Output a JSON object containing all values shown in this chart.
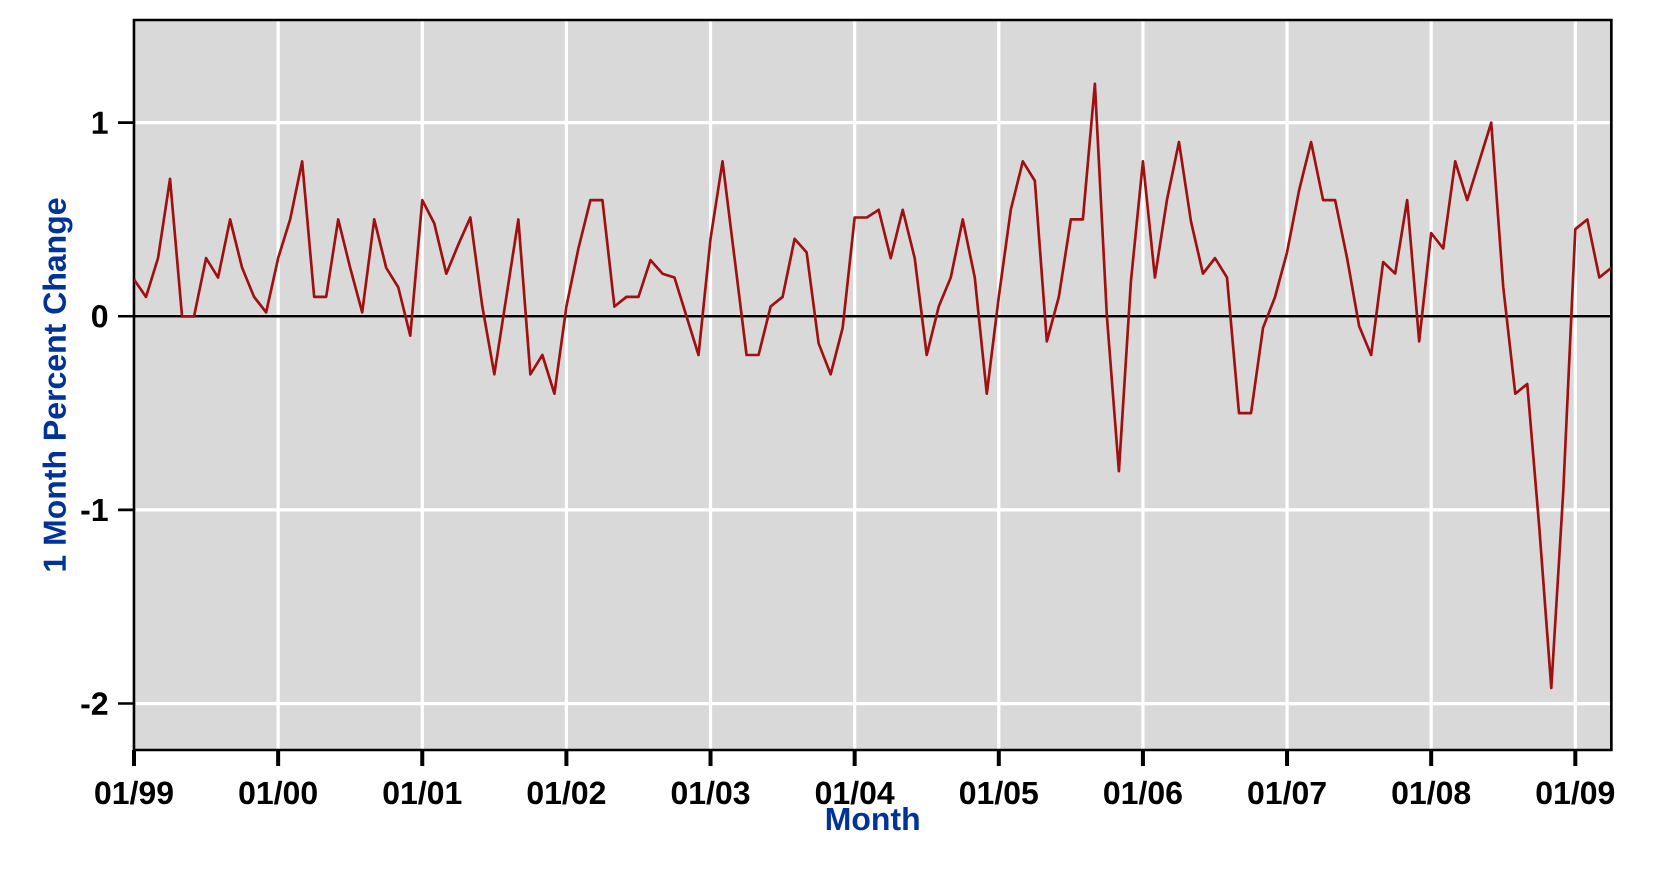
{
  "chart_data": {
    "type": "line",
    "xlabel": "Month",
    "ylabel": "1 Month Percent Change",
    "x": [
      "1999-01",
      "1999-02",
      "1999-03",
      "1999-04",
      "1999-05",
      "1999-06",
      "1999-07",
      "1999-08",
      "1999-09",
      "1999-10",
      "1999-11",
      "1999-12",
      "2000-01",
      "2000-02",
      "2000-03",
      "2000-04",
      "2000-05",
      "2000-06",
      "2000-07",
      "2000-08",
      "2000-09",
      "2000-10",
      "2000-11",
      "2000-12",
      "2001-01",
      "2001-02",
      "2001-03",
      "2001-04",
      "2001-05",
      "2001-06",
      "2001-07",
      "2001-08",
      "2001-09",
      "2001-10",
      "2001-11",
      "2001-12",
      "2002-01",
      "2002-02",
      "2002-03",
      "2002-04",
      "2002-05",
      "2002-06",
      "2002-07",
      "2002-08",
      "2002-09",
      "2002-10",
      "2002-11",
      "2002-12",
      "2003-01",
      "2003-02",
      "2003-03",
      "2003-04",
      "2003-05",
      "2003-06",
      "2003-07",
      "2003-08",
      "2003-09",
      "2003-10",
      "2003-11",
      "2003-12",
      "2004-01",
      "2004-02",
      "2004-03",
      "2004-04",
      "2004-05",
      "2004-06",
      "2004-07",
      "2004-08",
      "2004-09",
      "2004-10",
      "2004-11",
      "2004-12",
      "2005-01",
      "2005-02",
      "2005-03",
      "2005-04",
      "2005-05",
      "2005-06",
      "2005-07",
      "2005-08",
      "2005-09",
      "2005-10",
      "2005-11",
      "2005-12",
      "2006-01",
      "2006-02",
      "2006-03",
      "2006-04",
      "2006-05",
      "2006-06",
      "2006-07",
      "2006-08",
      "2006-09",
      "2006-10",
      "2006-11",
      "2006-12",
      "2007-01",
      "2007-02",
      "2007-03",
      "2007-04",
      "2007-05",
      "2007-06",
      "2007-07",
      "2007-08",
      "2007-09",
      "2007-10",
      "2007-11",
      "2007-12",
      "2008-01",
      "2008-02",
      "2008-03",
      "2008-04",
      "2008-05",
      "2008-06",
      "2008-07",
      "2008-08",
      "2008-09",
      "2008-10",
      "2008-11",
      "2008-12",
      "2009-01",
      "2009-02",
      "2009-03",
      "2009-04"
    ],
    "values": [
      0.19,
      0.1,
      0.3,
      0.71,
      0.0,
      0.0,
      0.3,
      0.2,
      0.5,
      0.25,
      0.1,
      0.02,
      0.3,
      0.5,
      0.8,
      0.1,
      0.1,
      0.5,
      0.25,
      0.02,
      0.5,
      0.25,
      0.15,
      -0.1,
      0.6,
      0.48,
      0.22,
      0.37,
      0.51,
      0.05,
      -0.3,
      0.1,
      0.5,
      -0.3,
      -0.2,
      -0.4,
      0.05,
      0.35,
      0.6,
      0.6,
      0.05,
      0.1,
      0.1,
      0.29,
      0.22,
      0.2,
      0.0,
      -0.2,
      0.4,
      0.8,
      0.3,
      -0.2,
      -0.2,
      0.05,
      0.1,
      0.4,
      0.33,
      -0.14,
      -0.3,
      -0.06,
      0.51,
      0.51,
      0.55,
      0.3,
      0.55,
      0.3,
      -0.2,
      0.05,
      0.2,
      0.5,
      0.2,
      -0.4,
      0.1,
      0.55,
      0.8,
      0.7,
      -0.13,
      0.1,
      0.5,
      0.5,
      1.2,
      0.0,
      -0.8,
      0.18,
      0.8,
      0.2,
      0.6,
      0.9,
      0.49,
      0.22,
      0.3,
      0.2,
      -0.5,
      -0.5,
      -0.06,
      0.1,
      0.33,
      0.65,
      0.9,
      0.6,
      0.6,
      0.3,
      -0.05,
      -0.2,
      0.28,
      0.22,
      0.6,
      -0.13,
      0.43,
      0.35,
      0.8,
      0.6,
      0.8,
      1.0,
      0.15,
      -0.4,
      -0.35,
      -1.09,
      -1.92,
      -0.9,
      0.45,
      0.5,
      0.2,
      0.25
    ],
    "color": "#a01010",
    "xlim": [
      "1999-01",
      "2009-04"
    ],
    "xticks": [
      {
        "value": "1999-01",
        "label": "01/99"
      },
      {
        "value": "2000-01",
        "label": "01/00"
      },
      {
        "value": "2001-01",
        "label": "01/01"
      },
      {
        "value": "2002-01",
        "label": "01/02"
      },
      {
        "value": "2003-01",
        "label": "01/03"
      },
      {
        "value": "2004-01",
        "label": "01/04"
      },
      {
        "value": "2005-01",
        "label": "01/05"
      },
      {
        "value": "2006-01",
        "label": "01/06"
      },
      {
        "value": "2007-01",
        "label": "01/07"
      },
      {
        "value": "2008-01",
        "label": "01/08"
      },
      {
        "value": "2009-01",
        "label": "01/09"
      }
    ],
    "ylim": [
      -2.24,
      1.53
    ],
    "yticks": [
      -2,
      -1,
      0,
      1
    ],
    "ref_lines": [
      {
        "axis": "y",
        "value": 0,
        "color": "#000000"
      }
    ],
    "grid": true,
    "marker": "none"
  }
}
